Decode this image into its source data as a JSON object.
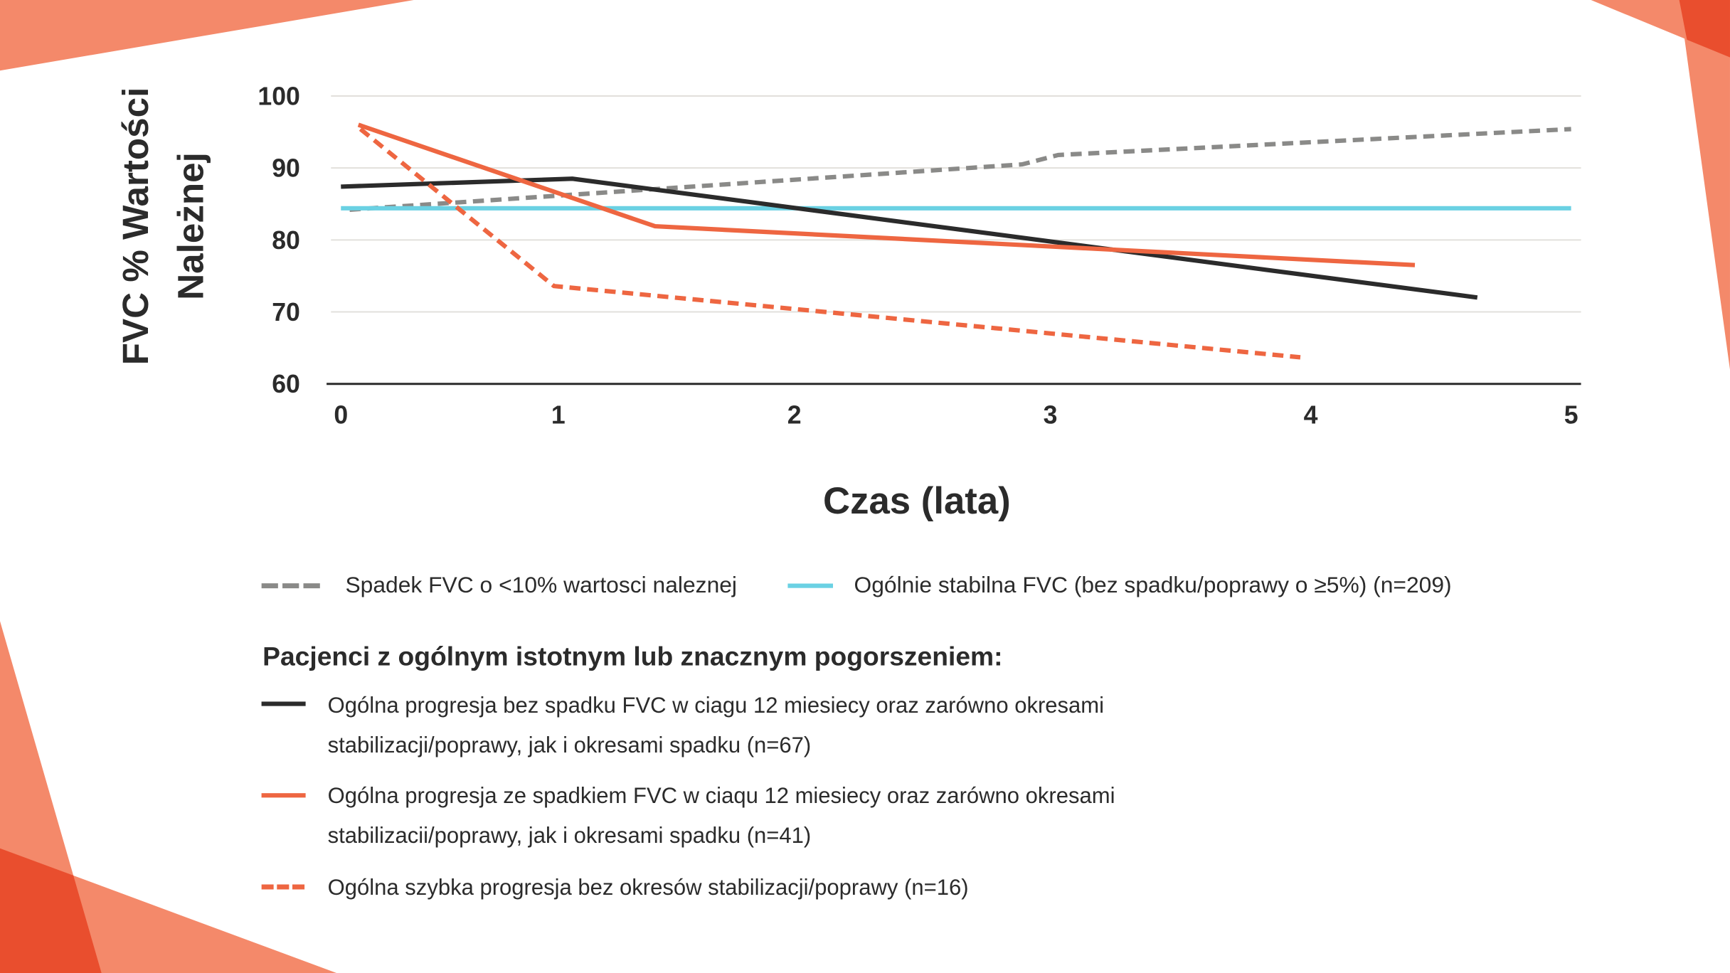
{
  "colors": {
    "decor_light": "#F4896A",
    "decor_dark": "#E94E2E",
    "text": "#2b2b2b",
    "grid": "#e2e0dc",
    "gray_dashed": "#8a8a88",
    "cyan": "#6AD1E3",
    "black": "#2b2b2b",
    "red": "#EE6641"
  },
  "chart_data": {
    "type": "line",
    "title": "",
    "ylabel_lines": [
      "FVC % Wartości",
      "Należnej"
    ],
    "xlabel": "Czas (lata)",
    "ylim": [
      60,
      100
    ],
    "xlim": [
      0,
      5
    ],
    "yticks": [
      "60",
      "70",
      "80",
      "90",
      "100"
    ],
    "xticks": [
      "0",
      "1",
      "2",
      "3",
      "4",
      "5"
    ],
    "grid": "horizontal",
    "legend_placement": "bottom",
    "series": [
      {
        "name": "Spadek FVC o <10% wartosci naleznej",
        "color": "#8a8a88",
        "style": "dashed",
        "points": [
          [
            0.04,
            84.2
          ],
          [
            2.89,
            90.5
          ],
          [
            3.03,
            91.8
          ],
          [
            5.0,
            95.4
          ]
        ]
      },
      {
        "name": "Ogólnie stabilna FVC (bez spadku/poprawy o ≥5%) (n=209)",
        "color": "#6AD1E3",
        "style": "solid",
        "points": [
          [
            0.0,
            84.4
          ],
          [
            5.0,
            84.4
          ]
        ]
      },
      {
        "name": "Ogólna progresja bez spadku FVC w ciagu 12 miesiecy oraz zarówno okresami stabilizacji/poprawy, jak i okresami spadku (n=67)",
        "color": "#2b2b2b",
        "style": "solid",
        "points": [
          [
            0.0,
            87.4
          ],
          [
            1.06,
            88.5
          ],
          [
            4.64,
            72.0
          ]
        ]
      },
      {
        "name": "Ogólna progresja ze spadkiem FVC w ciaqu 12 miesiecy oraz zarówno okresami stabilizacii/poprawy, jak i okresami spadku (n=41)",
        "color": "#EE6641",
        "style": "solid",
        "points": [
          [
            0.08,
            96.0
          ],
          [
            1.41,
            81.9
          ],
          [
            4.4,
            76.5
          ]
        ]
      },
      {
        "name": "Ogólna szybka progresja bez okresów stabilizacji/poprawy (n=16)",
        "color": "#EE6641",
        "style": "dashed",
        "points": [
          [
            0.09,
            95.4
          ],
          [
            0.98,
            73.6
          ],
          [
            3.96,
            63.7
          ]
        ]
      }
    ]
  },
  "legend": {
    "row1": [
      {
        "label": "Spadek FVC o <10% wartosci naleznej"
      },
      {
        "label": "Ogólnie stabilna FVC (bez spadku/poprawy o ≥5%) (n=209)"
      }
    ],
    "group_heading": "Pacjenci z ogólnym istotnym lub znacznym pogorszeniem:",
    "group_items": [
      {
        "line1": "Ogólna progresja bez spadku FVC w ciagu 12 miesiecy oraz zarówno okresami",
        "line2": "stabilizacji/poprawy, jak i okresami spadku (n=67)"
      },
      {
        "line1": "Ogólna progresja ze spadkiem FVC w ciaqu 12 miesiecy oraz zarówno okresami",
        "line2": "stabilizacii/poprawy, jak i okresami spadku (n=41)"
      },
      {
        "line1": "Ogólna szybka progresja bez okresów stabilizacji/poprawy (n=16)"
      }
    ]
  }
}
